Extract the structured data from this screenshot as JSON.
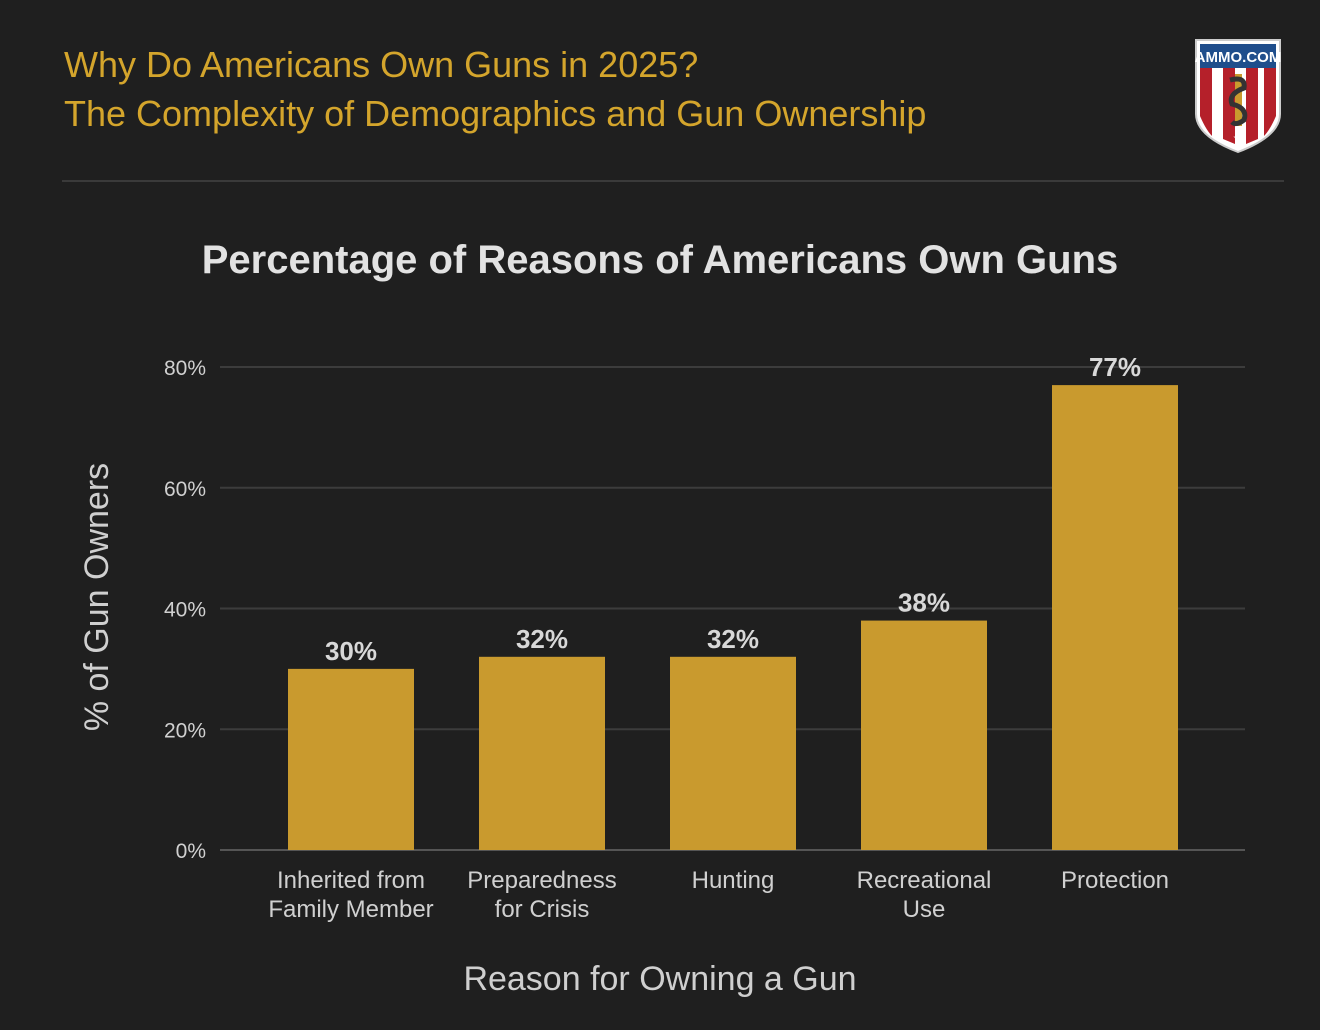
{
  "header": {
    "title_line1": "Why Do Americans Own Guns in 2025?",
    "title_line2": "The Complexity of Demographics and Gun Ownership",
    "logo_text": "AMMO.COM"
  },
  "colors": {
    "accent": "#d4a52c",
    "bar": "#c99a2e",
    "background": "#1f1f1f",
    "grid": "#3c3c3c"
  },
  "chart_data": {
    "type": "bar",
    "title": "Percentage of Reasons of Americans Own Guns",
    "xlabel": "Reason for Owning a Gun",
    "ylabel": "% of Gun Owners",
    "categories": [
      [
        "Inherited from",
        "Family Member"
      ],
      [
        "Preparedness",
        "for Crisis"
      ],
      [
        "Hunting"
      ],
      [
        "Recreational",
        "Use"
      ],
      [
        "Protection"
      ]
    ],
    "values": [
      30,
      32,
      32,
      38,
      77
    ],
    "data_labels": [
      "30%",
      "32%",
      "32%",
      "38%",
      "77%"
    ],
    "ylim": [
      0,
      80
    ],
    "yticks": [
      0,
      20,
      40,
      60,
      80
    ],
    "ytick_labels": [
      "0%",
      "20%",
      "40%",
      "60%",
      "80%"
    ],
    "grid": true,
    "legend": "none"
  }
}
